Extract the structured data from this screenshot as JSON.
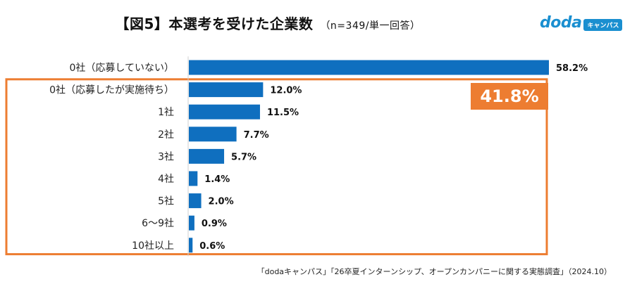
{
  "title": {
    "main": "【図5】本選考を受けた企業数",
    "sub": "（n=349/単一回答）"
  },
  "logo": {
    "word": "doda",
    "badge": "キャンパス"
  },
  "chart_data": {
    "type": "bar",
    "orientation": "horizontal",
    "title": "【図5】本選考を受けた企業数",
    "categories": [
      "0社（応募していない）",
      "0社（応募したが実施待ち）",
      "1社",
      "2社",
      "3社",
      "4社",
      "5社",
      "6〜9社",
      "10社以上"
    ],
    "values": [
      58.2,
      12.0,
      11.5,
      7.7,
      5.7,
      1.4,
      2.0,
      0.9,
      0.6
    ],
    "value_labels": [
      "58.2%",
      "12.0%",
      "11.5%",
      "7.7%",
      "5.7%",
      "1.4%",
      "2.0%",
      "0.9%",
      "0.6%"
    ],
    "unit": "%",
    "xlim": [
      0,
      58.2
    ],
    "grid": false,
    "highlight": {
      "label": "41.8%",
      "group_start_index": 1,
      "group_end_index": 8,
      "color": "#ed7d31"
    },
    "bar_color": "#0f6fbf"
  },
  "source": "「dodaキャンパス」「26卒夏インターンシップ、オープンカンパニーに関する実態調査」（2024.10）"
}
